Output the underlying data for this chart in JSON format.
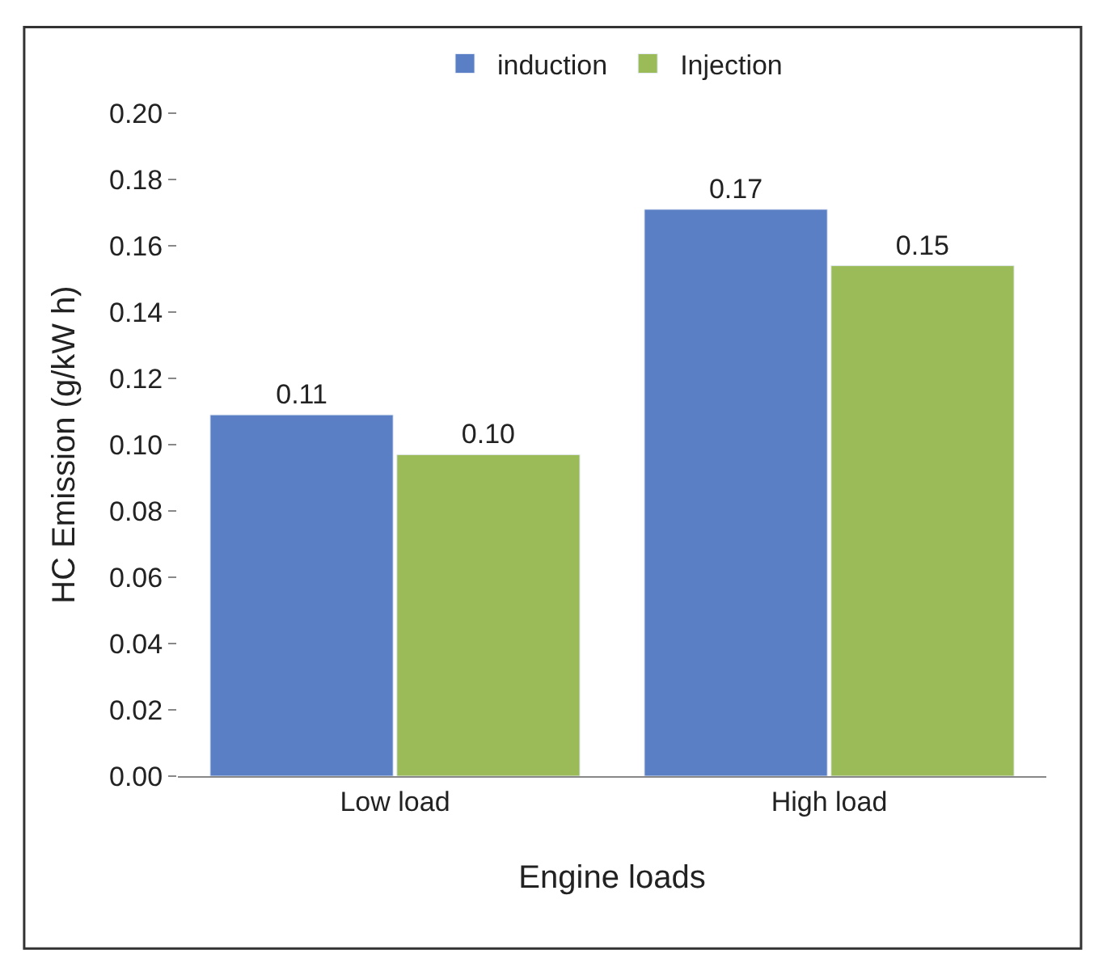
{
  "chart_data": {
    "type": "bar",
    "xlabel": "Engine loads",
    "ylabel": "HC Emission (g/kW h)",
    "categories": [
      "Low load",
      "High load"
    ],
    "series": [
      {
        "name": "induction",
        "color": "#5b7fc4",
        "values": [
          0.109,
          0.171
        ],
        "value_labels": [
          "0.11",
          "0.17"
        ]
      },
      {
        "name": "Injection",
        "color": "#9bbb59",
        "values": [
          0.097,
          0.154
        ],
        "value_labels": [
          "0.10",
          "0.15"
        ]
      }
    ],
    "ylim": [
      0,
      0.2
    ],
    "yticks": [
      {
        "value": 0,
        "label": "0.00"
      },
      {
        "value": 0.02,
        "label": "0.02"
      },
      {
        "value": 0.04,
        "label": "0.04"
      },
      {
        "value": 0.06,
        "label": "0.06"
      },
      {
        "value": 0.08,
        "label": "0.08"
      },
      {
        "value": 0.1,
        "label": "0.10"
      },
      {
        "value": 0.12,
        "label": "0.12"
      },
      {
        "value": 0.14,
        "label": "0.14"
      },
      {
        "value": 0.16,
        "label": "0.16"
      },
      {
        "value": 0.18,
        "label": "0.18"
      },
      {
        "value": 0.2,
        "label": "0.20"
      }
    ],
    "legend": "top"
  }
}
